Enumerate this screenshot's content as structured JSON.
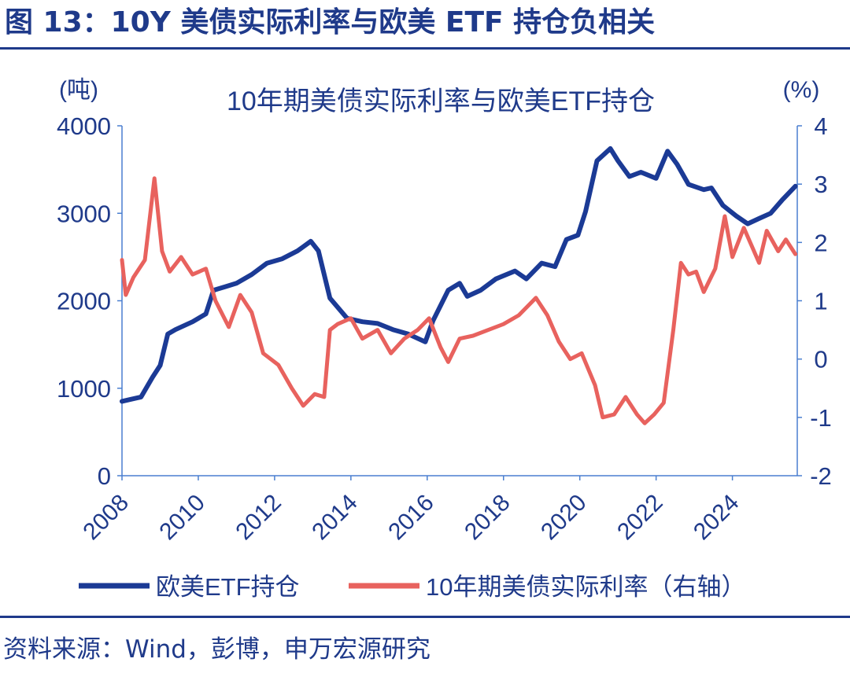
{
  "figure_title": "图 13：10Y 美债实际利率与欧美 ETF 持仓负相关",
  "source": "资料来源：Wind，彭博，申万宏源研究",
  "colors": {
    "etf": "#1b3a95",
    "rate": "#e8625e",
    "text": "#1f3a8a",
    "axis": "#4a7fd0"
  },
  "chart_data": {
    "type": "line",
    "title": "10年期美债实际利率与欧美ETF持仓",
    "y_left": {
      "unit": "(吨)",
      "range": [
        0,
        4000
      ],
      "ticks": [
        0,
        1000,
        2000,
        3000,
        4000
      ]
    },
    "y_right": {
      "unit": "(%)",
      "range": [
        -2,
        4
      ],
      "ticks": [
        -2,
        -1,
        0,
        1,
        2,
        3,
        4
      ]
    },
    "x": {
      "range": [
        2008,
        2025.7
      ],
      "ticks": [
        "2008",
        "2010",
        "2012",
        "2014",
        "2016",
        "2018",
        "2020",
        "2022",
        "2024"
      ]
    },
    "grid": false,
    "legend_position": "bottom",
    "series": [
      {
        "name": "欧美ETF持仓",
        "axis": "left",
        "points": [
          [
            2008.0,
            850
          ],
          [
            2008.2,
            870
          ],
          [
            2008.5,
            900
          ],
          [
            2008.8,
            1125
          ],
          [
            2009.0,
            1260
          ],
          [
            2009.2,
            1620
          ],
          [
            2009.4,
            1670
          ],
          [
            2009.85,
            1760
          ],
          [
            2010.2,
            1850
          ],
          [
            2010.4,
            2120
          ],
          [
            2010.7,
            2160
          ],
          [
            2011.0,
            2200
          ],
          [
            2011.4,
            2300
          ],
          [
            2011.8,
            2430
          ],
          [
            2012.2,
            2480
          ],
          [
            2012.6,
            2570
          ],
          [
            2012.95,
            2680
          ],
          [
            2013.15,
            2570
          ],
          [
            2013.45,
            2030
          ],
          [
            2013.9,
            1800
          ],
          [
            2014.3,
            1760
          ],
          [
            2014.7,
            1740
          ],
          [
            2015.1,
            1670
          ],
          [
            2015.5,
            1620
          ],
          [
            2015.95,
            1530
          ],
          [
            2016.15,
            1770
          ],
          [
            2016.55,
            2120
          ],
          [
            2016.85,
            2200
          ],
          [
            2017.05,
            2050
          ],
          [
            2017.4,
            2120
          ],
          [
            2017.8,
            2250
          ],
          [
            2018.3,
            2340
          ],
          [
            2018.6,
            2250
          ],
          [
            2019.0,
            2430
          ],
          [
            2019.35,
            2390
          ],
          [
            2019.65,
            2700
          ],
          [
            2019.95,
            2750
          ],
          [
            2020.15,
            3020
          ],
          [
            2020.45,
            3600
          ],
          [
            2020.8,
            3740
          ],
          [
            2021.0,
            3600
          ],
          [
            2021.3,
            3420
          ],
          [
            2021.6,
            3470
          ],
          [
            2022.0,
            3400
          ],
          [
            2022.3,
            3710
          ],
          [
            2022.55,
            3560
          ],
          [
            2022.85,
            3330
          ],
          [
            2023.25,
            3270
          ],
          [
            2023.45,
            3290
          ],
          [
            2023.75,
            3090
          ],
          [
            2024.1,
            2970
          ],
          [
            2024.4,
            2880
          ],
          [
            2024.7,
            2940
          ],
          [
            2025.0,
            3000
          ],
          [
            2025.3,
            3150
          ],
          [
            2025.65,
            3310
          ]
        ]
      },
      {
        "name": "10年期美债实际利率（右轴）",
        "axis": "right",
        "points": [
          [
            2008.0,
            1.7
          ],
          [
            2008.1,
            1.1
          ],
          [
            2008.3,
            1.4
          ],
          [
            2008.6,
            1.7
          ],
          [
            2008.85,
            3.1
          ],
          [
            2009.05,
            1.85
          ],
          [
            2009.25,
            1.5
          ],
          [
            2009.55,
            1.75
          ],
          [
            2009.85,
            1.45
          ],
          [
            2010.2,
            1.55
          ],
          [
            2010.45,
            1.0
          ],
          [
            2010.8,
            0.55
          ],
          [
            2011.1,
            1.1
          ],
          [
            2011.4,
            0.8
          ],
          [
            2011.7,
            0.1
          ],
          [
            2012.1,
            -0.1
          ],
          [
            2012.45,
            -0.5
          ],
          [
            2012.75,
            -0.8
          ],
          [
            2013.05,
            -0.6
          ],
          [
            2013.3,
            -0.65
          ],
          [
            2013.45,
            0.5
          ],
          [
            2013.65,
            0.6
          ],
          [
            2014.0,
            0.7
          ],
          [
            2014.3,
            0.35
          ],
          [
            2014.7,
            0.5
          ],
          [
            2015.05,
            0.1
          ],
          [
            2015.4,
            0.35
          ],
          [
            2015.75,
            0.5
          ],
          [
            2016.05,
            0.7
          ],
          [
            2016.35,
            0.2
          ],
          [
            2016.55,
            -0.05
          ],
          [
            2016.85,
            0.35
          ],
          [
            2017.2,
            0.4
          ],
          [
            2017.6,
            0.5
          ],
          [
            2018.0,
            0.6
          ],
          [
            2018.4,
            0.75
          ],
          [
            2018.85,
            1.05
          ],
          [
            2019.15,
            0.75
          ],
          [
            2019.45,
            0.3
          ],
          [
            2019.75,
            0.0
          ],
          [
            2020.05,
            0.1
          ],
          [
            2020.4,
            -0.45
          ],
          [
            2020.6,
            -1.0
          ],
          [
            2020.9,
            -0.95
          ],
          [
            2021.2,
            -0.65
          ],
          [
            2021.5,
            -0.95
          ],
          [
            2021.7,
            -1.1
          ],
          [
            2021.95,
            -0.95
          ],
          [
            2022.2,
            -0.75
          ],
          [
            2022.45,
            0.5
          ],
          [
            2022.65,
            1.65
          ],
          [
            2022.85,
            1.45
          ],
          [
            2023.05,
            1.5
          ],
          [
            2023.25,
            1.15
          ],
          [
            2023.55,
            1.55
          ],
          [
            2023.8,
            2.45
          ],
          [
            2024.0,
            1.75
          ],
          [
            2024.3,
            2.25
          ],
          [
            2024.5,
            1.95
          ],
          [
            2024.7,
            1.65
          ],
          [
            2024.9,
            2.2
          ],
          [
            2025.2,
            1.85
          ],
          [
            2025.4,
            2.05
          ],
          [
            2025.65,
            1.8
          ]
        ]
      }
    ]
  }
}
